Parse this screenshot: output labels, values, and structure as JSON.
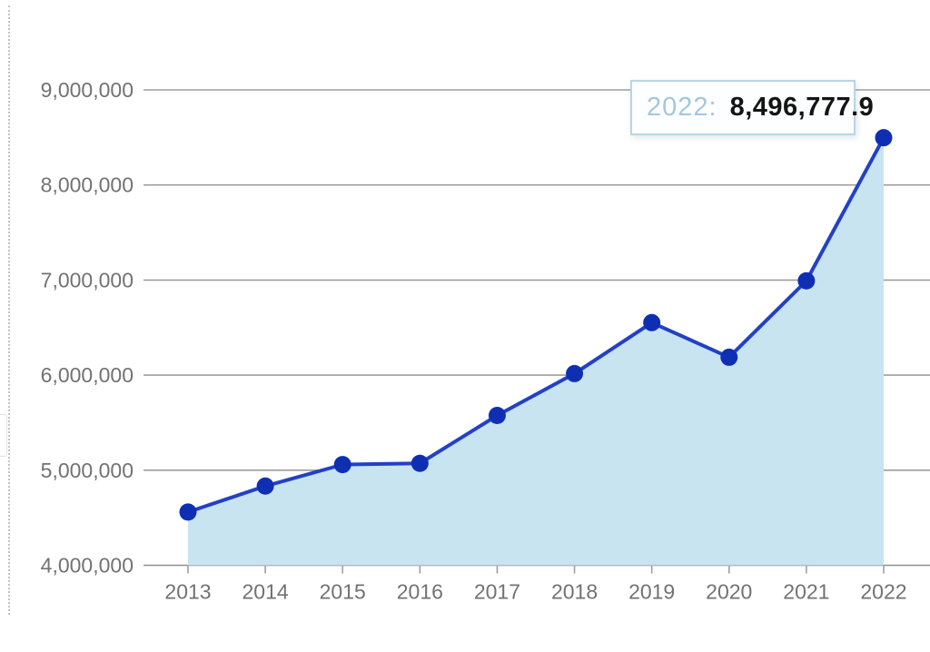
{
  "tooltip": {
    "year_label": "2022:",
    "value": "8,496,777.9"
  },
  "colors": {
    "line": "#2241c6",
    "marker": "#0f2fb3",
    "area_fill": "#c8e4f1",
    "gridline": "#9e9e9e",
    "axis_line": "#8f8f8f",
    "tick": "#9e9e9e",
    "axis_label": "#727272",
    "tooltip_border": "#b7d6e4",
    "tooltip_year_text": "#a2c8dc",
    "tooltip_value_text": "#141414"
  },
  "chart_data": {
    "type": "area",
    "title": "",
    "xlabel": "",
    "ylabel": "",
    "categories": [
      "2013",
      "2014",
      "2015",
      "2016",
      "2017",
      "2018",
      "2019",
      "2020",
      "2021",
      "2022"
    ],
    "values": [
      4560000,
      4833000,
      5059000,
      5072000,
      5576000,
      6016000,
      6552000,
      6188000,
      6992000,
      8496777.9
    ],
    "ylim": [
      4000000,
      9000000
    ],
    "yticks": [
      {
        "value": 4000000,
        "label": "4,000,000"
      },
      {
        "value": 5000000,
        "label": "5,000,000"
      },
      {
        "value": 6000000,
        "label": "6,000,000"
      },
      {
        "value": 7000000,
        "label": "7,000,000"
      },
      {
        "value": 8000000,
        "label": "8,000,000"
      },
      {
        "value": 9000000,
        "label": "9,000,000"
      }
    ],
    "grid": true,
    "legend": "none",
    "annotation": {
      "year": "2022",
      "value": "8,496,777.9"
    }
  }
}
